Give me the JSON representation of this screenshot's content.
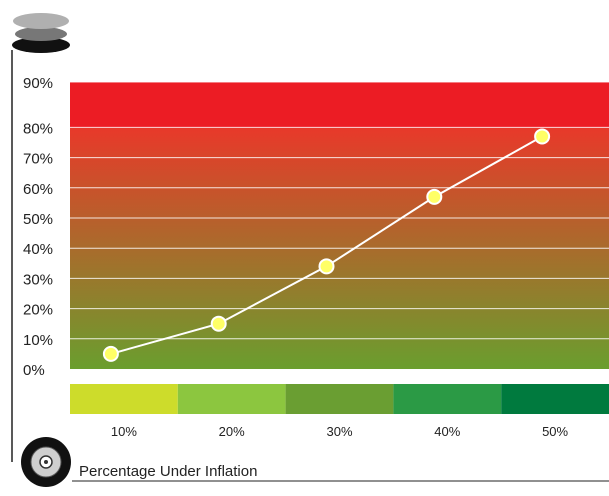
{
  "chart_data": {
    "type": "line",
    "xlabel": "Percentage Under Inflation",
    "ylabel": "",
    "categories": [
      "10%",
      "20%",
      "30%",
      "40%",
      "50%"
    ],
    "series": [
      {
        "values": [
          5,
          15,
          34,
          57,
          77
        ]
      }
    ],
    "y_ticks": [
      {
        "value": 0,
        "label": "0%"
      },
      {
        "value": 10,
        "label": "10%"
      },
      {
        "value": 20,
        "label": "20%"
      },
      {
        "value": 30,
        "label": "30%"
      },
      {
        "value": 40,
        "label": "40%"
      },
      {
        "value": 50,
        "label": "50%"
      },
      {
        "value": 60,
        "label": "60%"
      },
      {
        "value": 70,
        "label": "70%"
      },
      {
        "value": 80,
        "label": "80%"
      },
      {
        "value": 90,
        "label": "90%"
      }
    ],
    "ylim": [
      0,
      95
    ],
    "grid": true,
    "background_gradient": {
      "bottom": "#6a9e2e",
      "top": "#e8392a",
      "cap": "#ec1c24"
    },
    "category_band_colors": [
      "#cddc2b",
      "#8cc63f",
      "#6a9e32",
      "#2b9a45",
      "#007a3e"
    ],
    "line_color": "#ffffff",
    "marker_fill": "#ffff66",
    "icons": {
      "top": "stacked-discs-icon",
      "bottom": "tire-icon"
    }
  }
}
